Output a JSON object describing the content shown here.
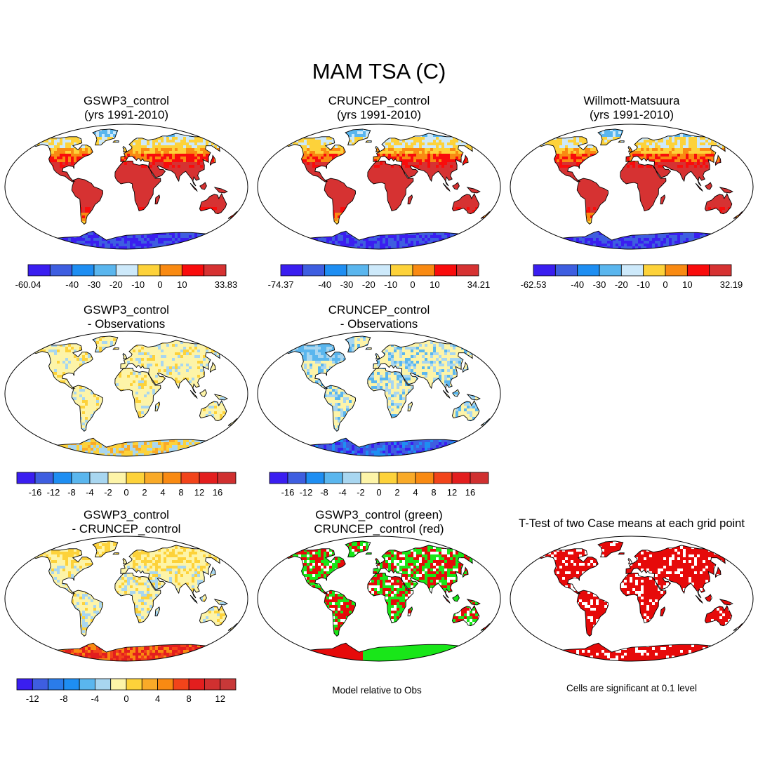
{
  "title": "MAM TSA (C)",
  "palettes": {
    "abs": [
      "#3a1ef0",
      "#3e5ee0",
      "#1e8ef2",
      "#5ab6ee",
      "#cde9fa",
      "#fdd23a",
      "#f98a12",
      "#f90c0c",
      "#d63232"
    ],
    "diff": [
      "#3a1ef0",
      "#3e5ee0",
      "#1e8ef2",
      "#5ab6ee",
      "#a8d6f0",
      "#fdf4a8",
      "#fdd23a",
      "#f9aa28",
      "#f98a12",
      "#f2441a",
      "#e31e1e",
      "#d03030"
    ]
  },
  "panels": [
    {
      "id": "p1",
      "line1": "GSWP3_control",
      "line2": "(yrs 1991-2010)",
      "style": "abs",
      "colorbar": {
        "labels": [
          "-60.04",
          "-40",
          "-30",
          "-20",
          "-10",
          "0",
          "10",
          "33.83"
        ]
      }
    },
    {
      "id": "p2",
      "line1": "CRUNCEP_control",
      "line2": "(yrs 1991-2010)",
      "style": "abs",
      "colorbar": {
        "labels": [
          "-74.37",
          "-40",
          "-30",
          "-20",
          "-10",
          "0",
          "10",
          "34.21"
        ]
      }
    },
    {
      "id": "p3",
      "line1": "Willmott-Matsuura",
      "line2": "(yrs 1991-2010)",
      "style": "abs",
      "colorbar": {
        "labels": [
          "-62.53",
          "-40",
          "-30",
          "-20",
          "-10",
          "0",
          "10",
          "32.19"
        ]
      }
    },
    {
      "id": "p4",
      "line1": "GSWP3_control",
      "line2": "- Observations",
      "style": "diff1",
      "colorbar": {
        "labels": [
          "-16",
          "-12",
          "-8",
          "-4",
          "-2",
          "0",
          "2",
          "4",
          "8",
          "12",
          "16"
        ]
      }
    },
    {
      "id": "p5",
      "line1": "CRUNCEP_control",
      "line2": "- Observations",
      "style": "diff2",
      "colorbar": {
        "labels": [
          "-16",
          "-12",
          "-8",
          "-4",
          "-2",
          "0",
          "2",
          "4",
          "8",
          "12",
          "16"
        ]
      }
    },
    {
      "id": "p7",
      "line1": "GSWP3_control",
      "line2": "- CRUNCEP_control",
      "style": "diff3",
      "colorbar": {
        "labels": [
          "-12",
          "-8",
          "-4",
          "0",
          "4",
          "8",
          "12"
        ]
      }
    },
    {
      "id": "p8",
      "line1": "GSWP3_control (green)",
      "line2": "CRUNCEP_control (red)",
      "style": "cmp",
      "caption": "Model relative to Obs"
    },
    {
      "id": "p9",
      "line1": "T-Test of two Case means at each grid point",
      "line2": "",
      "style": "ttest",
      "caption": "Cells are significant at 0.1 level"
    }
  ]
}
